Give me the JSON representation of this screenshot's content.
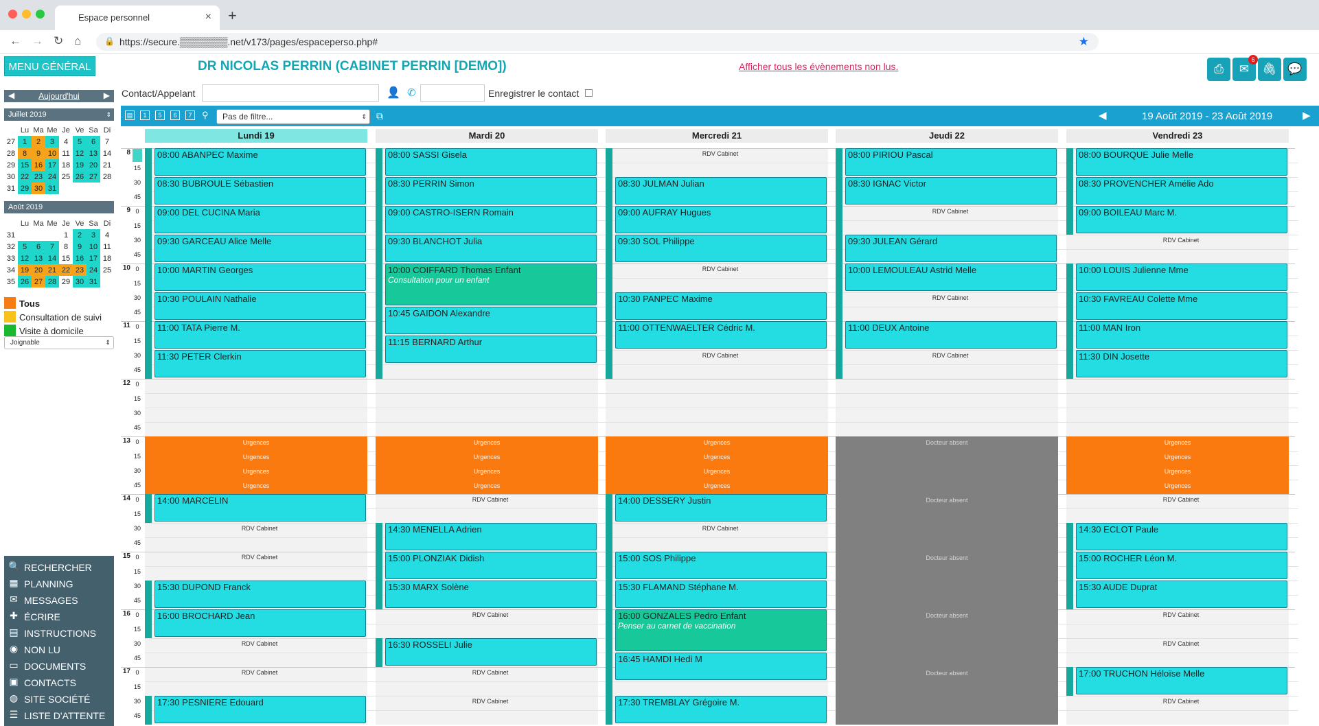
{
  "browser": {
    "tab_title": "Espace personnel",
    "url": "https://secure.▒▒▒▒▒▒▒.net/v173/pages/espaceperso.php#"
  },
  "header": {
    "menu_label": "MENU GÉNÉRAL",
    "title": "DR NICOLAS PERRIN (CABINET PERRIN [DEMO])",
    "unread_link": "Afficher tous les évènements non lus.",
    "mail_badge": "6"
  },
  "contact": {
    "label": "Contact/Appelant",
    "name_value": "",
    "phone_value": "",
    "save_label": "Enregistrer le contact"
  },
  "left": {
    "today_label": "Aujourd'hui",
    "month1_label": "Juillet 2019",
    "month2_label": "Août 2019",
    "weekday_headers": [
      "Lu",
      "Ma",
      "Me",
      "Je",
      "Ve",
      "Sa",
      "Di"
    ],
    "july": [
      {
        "wk": "27",
        "days": [
          "1",
          "2",
          "3",
          "4",
          "5",
          "6",
          "7"
        ],
        "cls": [
          "c",
          "o",
          "c",
          "w",
          "c",
          "c",
          "w"
        ]
      },
      {
        "wk": "28",
        "days": [
          "8",
          "9",
          "10",
          "11",
          "12",
          "13",
          "14"
        ],
        "cls": [
          "o",
          "o",
          "o",
          "w",
          "c",
          "c",
          "w"
        ]
      },
      {
        "wk": "29",
        "days": [
          "15",
          "16",
          "17",
          "18",
          "19",
          "20",
          "21"
        ],
        "cls": [
          "c",
          "o",
          "c",
          "w",
          "c",
          "c",
          "w"
        ]
      },
      {
        "wk": "30",
        "days": [
          "22",
          "23",
          "24",
          "25",
          "26",
          "27",
          "28"
        ],
        "cls": [
          "c",
          "c",
          "c",
          "w",
          "c",
          "c",
          "w"
        ]
      },
      {
        "wk": "31",
        "days": [
          "29",
          "30",
          "31",
          "",
          "",
          "",
          ""
        ],
        "cls": [
          "c",
          "o",
          "c",
          "w",
          "w",
          "w",
          "w"
        ]
      }
    ],
    "august": [
      {
        "wk": "31",
        "days": [
          "",
          "",
          "",
          "1",
          "2",
          "3",
          "4"
        ],
        "cls": [
          "w",
          "w",
          "w",
          "w",
          "c",
          "c",
          "w"
        ]
      },
      {
        "wk": "32",
        "days": [
          "5",
          "6",
          "7",
          "8",
          "9",
          "10",
          "11"
        ],
        "cls": [
          "c",
          "c",
          "c",
          "w",
          "c",
          "c",
          "w"
        ]
      },
      {
        "wk": "33",
        "days": [
          "12",
          "13",
          "14",
          "15",
          "16",
          "17",
          "18"
        ],
        "cls": [
          "c",
          "c",
          "c",
          "w",
          "c",
          "c",
          "w"
        ]
      },
      {
        "wk": "34",
        "days": [
          "19",
          "20",
          "21",
          "22",
          "23",
          "24",
          "25"
        ],
        "cls": [
          "o",
          "o",
          "o",
          "o",
          "o",
          "c",
          "w"
        ]
      },
      {
        "wk": "35",
        "days": [
          "26",
          "27",
          "28",
          "29",
          "30",
          "31",
          ""
        ],
        "cls": [
          "c",
          "o",
          "c",
          "w",
          "c",
          "c",
          "w"
        ]
      }
    ],
    "legend": [
      {
        "label": "Tous",
        "color": "#f77c12",
        "bold": true
      },
      {
        "label": "Consultation de suivi",
        "color": "#f7c21b",
        "bold": false
      },
      {
        "label": "Visite à domicile",
        "color": "#19b82e",
        "bold": false
      }
    ],
    "joignable": "Joignable"
  },
  "menu": [
    {
      "label": "RECHERCHER",
      "icon": "search-icon",
      "glyph": "🔍"
    },
    {
      "label": "PLANNING",
      "icon": "calendar-icon",
      "glyph": "▦"
    },
    {
      "label": "MESSAGES",
      "icon": "envelope-icon",
      "glyph": "✉"
    },
    {
      "label": "ÉCRIRE",
      "icon": "plus-icon",
      "glyph": "✚"
    },
    {
      "label": "INSTRUCTIONS",
      "icon": "book-icon",
      "glyph": "▤"
    },
    {
      "label": "NON LU",
      "icon": "eye-icon",
      "glyph": "◉"
    },
    {
      "label": "DOCUMENTS",
      "icon": "inbox-icon",
      "glyph": "▭"
    },
    {
      "label": "CONTACTS",
      "icon": "contact-card-icon",
      "glyph": "▣"
    },
    {
      "label": "SITE SOCIÉTÉ",
      "icon": "globe-icon",
      "glyph": "◍"
    },
    {
      "label": "LISTE D'ATTENTE",
      "icon": "list-icon",
      "glyph": "☰"
    }
  ],
  "toolbar": {
    "filter": "Pas de filtre...",
    "date_range": "19 Août 2019 - 23 Août 2019",
    "view_icons": [
      "▤",
      "1",
      "5",
      "6",
      "7"
    ]
  },
  "agenda": {
    "start_hour": 8,
    "hours": [
      "8",
      "9",
      "10",
      "11",
      "12",
      "13",
      "14",
      "15",
      "16",
      "17"
    ],
    "quarters": [
      "0",
      "15",
      "30",
      "45"
    ],
    "days": [
      {
        "name": "Lundi 19",
        "today": true,
        "appts": [
          {
            "t": "08:00",
            "n": "ABANPEC Maxime",
            "d": 30
          },
          {
            "t": "08:30",
            "n": "BUBROULE Sébastien",
            "d": 30
          },
          {
            "t": "09:00",
            "n": "DEL CUCINA Maria",
            "d": 30
          },
          {
            "t": "09:30",
            "n": "GARCEAU Alice Melle",
            "d": 30
          },
          {
            "t": "10:00",
            "n": "MARTIN Georges",
            "d": 30
          },
          {
            "t": "10:30",
            "n": "POULAIN Nathalie",
            "d": 30
          },
          {
            "t": "11:00",
            "n": "TATA Pierre M.",
            "d": 30
          },
          {
            "t": "11:30",
            "n": "PETER Clerkin",
            "d": 30
          },
          {
            "t": "14:00",
            "n": "MARCELIN",
            "d": 30
          },
          {
            "t": "15:30",
            "n": "DUPOND Franck",
            "d": 30
          },
          {
            "t": "16:00",
            "n": "BROCHARD Jean",
            "d": 30
          },
          {
            "t": "17:30",
            "n": "PESNIERE Edouard",
            "d": 30
          }
        ],
        "rdv": [
          "14:30",
          "15:00",
          "16:30",
          "17:00"
        ],
        "block": {
          "type": "urgences",
          "label": "Urgences",
          "from": "13:00",
          "to": "14:00"
        },
        "bars": [
          [
            "08:00",
            "12:00"
          ],
          [
            "14:00",
            "14:30"
          ],
          [
            "15:30",
            "16:30"
          ],
          [
            "17:30",
            "18:00"
          ]
        ]
      },
      {
        "name": "Mardi 20",
        "today": false,
        "appts": [
          {
            "t": "08:00",
            "n": "SASSI Gisela",
            "d": 30
          },
          {
            "t": "08:30",
            "n": "PERRIN Simon",
            "d": 30
          },
          {
            "t": "09:00",
            "n": "CASTRO-ISERN Romain",
            "d": 30
          },
          {
            "t": "09:30",
            "n": "BLANCHOT Julia",
            "d": 30
          },
          {
            "t": "10:00",
            "n": "COIFFARD Thomas Enfant",
            "d": 45,
            "green": true,
            "sub": "Consultation pour un enfant"
          },
          {
            "t": "10:45",
            "n": "GAIDON Alexandre",
            "d": 30
          },
          {
            "t": "11:15",
            "n": "BERNARD Arthur",
            "d": 30
          },
          {
            "t": "14:30",
            "n": "MENELLA Adrien",
            "d": 30
          },
          {
            "t": "15:00",
            "n": "PLONZIAK Didish",
            "d": 30
          },
          {
            "t": "15:30",
            "n": "MARX Solène",
            "d": 30
          },
          {
            "t": "16:30",
            "n": "ROSSELI Julie",
            "d": 30
          }
        ],
        "rdv": [
          "14:00",
          "16:00",
          "17:00",
          "17:30"
        ],
        "block": {
          "type": "urgences",
          "label": "Urgences",
          "from": "13:00",
          "to": "14:00"
        },
        "bars": [
          [
            "08:00",
            "12:00"
          ],
          [
            "14:30",
            "16:00"
          ],
          [
            "16:30",
            "17:00"
          ]
        ]
      },
      {
        "name": "Mercredi 21",
        "today": false,
        "appts": [
          {
            "t": "08:30",
            "n": "JULMAN Julian",
            "d": 30
          },
          {
            "t": "09:00",
            "n": "AUFRAY Hugues",
            "d": 30
          },
          {
            "t": "09:30",
            "n": "SOL Philippe",
            "d": 30
          },
          {
            "t": "10:30",
            "n": "PANPEC Maxime",
            "d": 30
          },
          {
            "t": "11:00",
            "n": "OTTENWAELTER Cédric M.",
            "d": 30
          },
          {
            "t": "14:00",
            "n": "DESSERY Justin",
            "d": 30
          },
          {
            "t": "15:00",
            "n": "SOS Philippe",
            "d": 30
          },
          {
            "t": "15:30",
            "n": "FLAMAND Stéphane M.",
            "d": 30
          },
          {
            "t": "16:00",
            "n": "GONZALES Pedro Enfant",
            "d": 45,
            "green": true,
            "sub": "Penser au carnet de vaccination"
          },
          {
            "t": "16:45",
            "n": "HAMDI Hedi M",
            "d": 30
          },
          {
            "t": "17:30",
            "n": "TREMBLAY Grégoire M.",
            "d": 30
          }
        ],
        "rdv": [
          "08:00",
          "10:00",
          "11:30",
          "14:30"
        ],
        "block": {
          "type": "urgences",
          "label": "Urgences",
          "from": "13:00",
          "to": "14:00"
        },
        "bars": [
          [
            "08:00",
            "12:00"
          ],
          [
            "14:00",
            "18:00"
          ]
        ]
      },
      {
        "name": "Jeudi 22",
        "today": false,
        "appts": [
          {
            "t": "08:00",
            "n": "PIRIOU Pascal",
            "d": 30
          },
          {
            "t": "08:30",
            "n": "IGNAC Victor",
            "d": 30
          },
          {
            "t": "09:30",
            "n": "JULEAN Gérard",
            "d": 30
          },
          {
            "t": "10:00",
            "n": "LEMOULEAU Astrid Melle",
            "d": 30
          },
          {
            "t": "11:00",
            "n": "DEUX Antoine",
            "d": 30
          }
        ],
        "rdv": [
          "09:00",
          "10:30",
          "11:30"
        ],
        "block": {
          "type": "absent",
          "label": "Docteur absent",
          "from": "13:00",
          "to": "18:00"
        },
        "bars": [
          [
            "08:00",
            "12:00"
          ]
        ]
      },
      {
        "name": "Vendredi 23",
        "today": false,
        "appts": [
          {
            "t": "08:00",
            "n": "BOURQUE Julie Melle",
            "d": 30
          },
          {
            "t": "08:30",
            "n": "PROVENCHER Amélie Ado",
            "d": 30
          },
          {
            "t": "09:00",
            "n": "BOILEAU Marc M.",
            "d": 30
          },
          {
            "t": "10:00",
            "n": "LOUIS Julienne Mme",
            "d": 30
          },
          {
            "t": "10:30",
            "n": "FAVREAU Colette Mme",
            "d": 30
          },
          {
            "t": "11:00",
            "n": "MAN Iron",
            "d": 30
          },
          {
            "t": "11:30",
            "n": "DIN Josette",
            "d": 30
          },
          {
            "t": "14:30",
            "n": "ECLOT Paule",
            "d": 30
          },
          {
            "t": "15:00",
            "n": "ROCHER Léon M.",
            "d": 30
          },
          {
            "t": "15:30",
            "n": "AUDE Duprat",
            "d": 30
          },
          {
            "t": "17:00",
            "n": "TRUCHON Héloïse Melle",
            "d": 30
          }
        ],
        "rdv": [
          "09:30",
          "14:00",
          "16:00",
          "16:30",
          "17:30"
        ],
        "block": {
          "type": "urgences",
          "label": "Urgences",
          "from": "13:00",
          "to": "14:00"
        },
        "bars": [
          [
            "08:00",
            "09:30"
          ],
          [
            "10:00",
            "12:00"
          ],
          [
            "14:30",
            "16:00"
          ],
          [
            "17:00",
            "17:30"
          ]
        ]
      }
    ],
    "rdv_label": "RDV Cabinet"
  }
}
